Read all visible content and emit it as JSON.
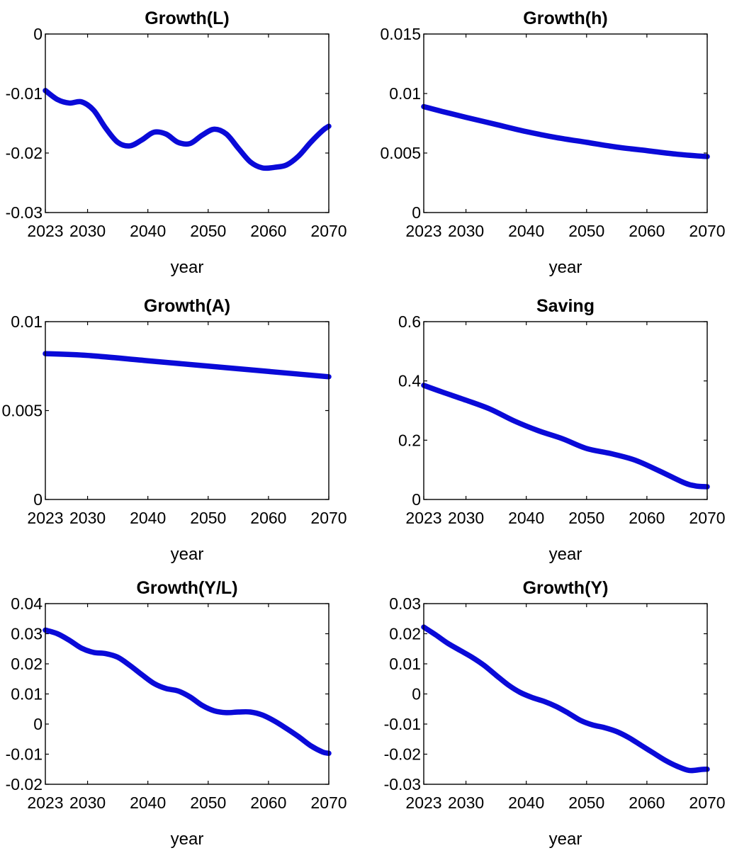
{
  "colors": {
    "line": "#0a0ad8",
    "axis": "#000000"
  },
  "chart_data": [
    {
      "type": "line",
      "title": "Growth(L)",
      "xlabel": "year",
      "ylabel": "",
      "xlim": [
        2023,
        2070
      ],
      "ylim": [
        -0.03,
        0
      ],
      "xticks": [
        2023,
        2030,
        2040,
        2050,
        2060,
        2070
      ],
      "yticks": [
        -0.03,
        -0.02,
        -0.01,
        0
      ],
      "ytick_labels": [
        "-0.03",
        "-0.02",
        "-0.01",
        "0"
      ],
      "grid": false,
      "series": [
        {
          "x": [
            2023,
            2025,
            2027,
            2029,
            2031,
            2033,
            2035,
            2037,
            2039,
            2041,
            2043,
            2045,
            2047,
            2049,
            2051,
            2053,
            2055,
            2057,
            2059,
            2061,
            2063,
            2065,
            2067,
            2069,
            2070
          ],
          "values": [
            -0.0095,
            -0.011,
            -0.0116,
            -0.0114,
            -0.0128,
            -0.0158,
            -0.0182,
            -0.0188,
            -0.0178,
            -0.0165,
            -0.0168,
            -0.0182,
            -0.0184,
            -0.017,
            -0.016,
            -0.0168,
            -0.0192,
            -0.0215,
            -0.0225,
            -0.0224,
            -0.022,
            -0.0205,
            -0.0182,
            -0.0162,
            -0.0155
          ]
        }
      ]
    },
    {
      "type": "line",
      "title": "Growth(h)",
      "xlabel": "year",
      "ylabel": "",
      "xlim": [
        2023,
        2070
      ],
      "ylim": [
        0,
        0.015
      ],
      "xticks": [
        2023,
        2030,
        2040,
        2050,
        2060,
        2070
      ],
      "yticks": [
        0,
        0.005,
        0.01,
        0.015
      ],
      "ytick_labels": [
        "0",
        "0.005",
        "0.01",
        "0.015"
      ],
      "grid": false,
      "series": [
        {
          "x": [
            2023,
            2026,
            2030,
            2035,
            2040,
            2045,
            2050,
            2055,
            2060,
            2065,
            2070
          ],
          "values": [
            0.0089,
            0.0085,
            0.008,
            0.0074,
            0.0068,
            0.0063,
            0.0059,
            0.0055,
            0.0052,
            0.0049,
            0.0047
          ]
        }
      ]
    },
    {
      "type": "line",
      "title": "Growth(A)",
      "xlabel": "year",
      "ylabel": "",
      "xlim": [
        2023,
        2070
      ],
      "ylim": [
        0,
        0.01
      ],
      "xticks": [
        2023,
        2030,
        2040,
        2050,
        2060,
        2070
      ],
      "yticks": [
        0,
        0.005,
        0.01
      ],
      "ytick_labels": [
        "0",
        "0.005",
        "0.01"
      ],
      "grid": false,
      "series": [
        {
          "x": [
            2023,
            2030,
            2040,
            2050,
            2060,
            2070
          ],
          "values": [
            0.0082,
            0.0081,
            0.0078,
            0.0075,
            0.0072,
            0.0069
          ]
        }
      ]
    },
    {
      "type": "line",
      "title": "Saving",
      "xlabel": "year",
      "ylabel": "",
      "xlim": [
        2023,
        2070
      ],
      "ylim": [
        0,
        0.6
      ],
      "xticks": [
        2023,
        2030,
        2040,
        2050,
        2060,
        2070
      ],
      "yticks": [
        0,
        0.2,
        0.4,
        0.6
      ],
      "ytick_labels": [
        "0",
        "0.2",
        "0.4",
        "0.6"
      ],
      "grid": false,
      "series": [
        {
          "x": [
            2023,
            2026,
            2030,
            2034,
            2038,
            2042,
            2046,
            2050,
            2054,
            2058,
            2062,
            2066,
            2068,
            2070
          ],
          "values": [
            0.385,
            0.363,
            0.335,
            0.305,
            0.265,
            0.232,
            0.205,
            0.172,
            0.155,
            0.133,
            0.097,
            0.058,
            0.046,
            0.043
          ]
        }
      ]
    },
    {
      "type": "line",
      "title": "Growth(Y/L)",
      "xlabel": "year",
      "ylabel": "",
      "xlim": [
        2023,
        2070
      ],
      "ylim": [
        -0.02,
        0.04
      ],
      "xticks": [
        2023,
        2030,
        2040,
        2050,
        2060,
        2070
      ],
      "yticks": [
        -0.02,
        -0.01,
        0,
        0.01,
        0.02,
        0.03,
        0.04
      ],
      "ytick_labels": [
        "-0.02",
        "-0.01",
        "0",
        "0.01",
        "0.02",
        "0.03",
        "0.04"
      ],
      "grid": false,
      "series": [
        {
          "x": [
            2023,
            2025,
            2027,
            2029,
            2031,
            2033,
            2035,
            2037,
            2039,
            2041,
            2043,
            2045,
            2047,
            2049,
            2051,
            2053,
            2055,
            2057,
            2059,
            2061,
            2063,
            2065,
            2067,
            2069,
            2070
          ],
          "values": [
            0.0312,
            0.03,
            0.0278,
            0.0252,
            0.0238,
            0.0234,
            0.0222,
            0.0195,
            0.0164,
            0.0135,
            0.0118,
            0.011,
            0.009,
            0.0062,
            0.0044,
            0.0038,
            0.004,
            0.004,
            0.003,
            0.001,
            -0.0015,
            -0.0042,
            -0.0072,
            -0.0093,
            -0.0097
          ]
        }
      ]
    },
    {
      "type": "line",
      "title": "Growth(Y)",
      "xlabel": "year",
      "ylabel": "",
      "xlim": [
        2023,
        2070
      ],
      "ylim": [
        -0.03,
        0.03
      ],
      "xticks": [
        2023,
        2030,
        2040,
        2050,
        2060,
        2070
      ],
      "yticks": [
        -0.03,
        -0.02,
        -0.01,
        0,
        0.01,
        0.02,
        0.03
      ],
      "ytick_labels": [
        "-0.03",
        "-0.02",
        "-0.01",
        "0",
        "0.01",
        "0.02",
        "0.03"
      ],
      "grid": false,
      "series": [
        {
          "x": [
            2023,
            2025,
            2027,
            2029,
            2031,
            2033,
            2035,
            2037,
            2039,
            2041,
            2043,
            2045,
            2047,
            2049,
            2051,
            2053,
            2055,
            2057,
            2059,
            2061,
            2063,
            2065,
            2067,
            2069,
            2070
          ],
          "values": [
            0.0222,
            0.0196,
            0.0168,
            0.0145,
            0.0122,
            0.0095,
            0.0062,
            0.003,
            0.0005,
            -0.0012,
            -0.0025,
            -0.0042,
            -0.0064,
            -0.0088,
            -0.0103,
            -0.0112,
            -0.0125,
            -0.0145,
            -0.017,
            -0.0195,
            -0.022,
            -0.024,
            -0.0254,
            -0.0251,
            -0.025
          ]
        }
      ]
    }
  ]
}
